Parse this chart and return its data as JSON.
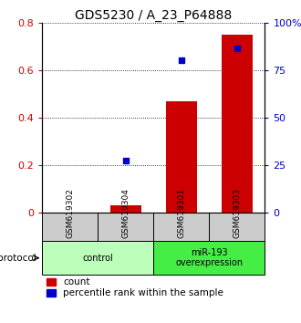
{
  "title": "GDS5230 / A_23_P64888",
  "samples": [
    "GSM619302",
    "GSM619304",
    "GSM619301",
    "GSM619303"
  ],
  "bar_values": [
    0.0,
    0.03,
    0.47,
    0.75
  ],
  "scatter_values": [
    null,
    0.22,
    0.64,
    0.69
  ],
  "bar_color": "#cc0000",
  "scatter_color": "#0000cc",
  "ylim": [
    0,
    0.8
  ],
  "yticks_left": [
    0,
    0.2,
    0.4,
    0.6,
    0.8
  ],
  "ytick_labels_left": [
    "0",
    "0.2",
    "0.4",
    "0.6",
    "0.8"
  ],
  "yticks_right_vals": [
    0,
    0.2,
    0.4,
    0.6,
    0.8
  ],
  "ytick_labels_right": [
    "0",
    "25",
    "50",
    "75",
    "100%"
  ],
  "groups": [
    {
      "label": "control",
      "indices": [
        0,
        1
      ],
      "color": "#bbffbb"
    },
    {
      "label": "miR-193\noverexpression",
      "indices": [
        2,
        3
      ],
      "color": "#44ee44"
    }
  ],
  "protocol_label": "protocol",
  "legend_bar_label": "count",
  "legend_scatter_label": "percentile rank within the sample",
  "sample_box_color": "#cccccc",
  "background_color": "#ffffff",
  "title_fontsize": 10,
  "tick_fontsize": 8,
  "legend_fontsize": 7.5
}
